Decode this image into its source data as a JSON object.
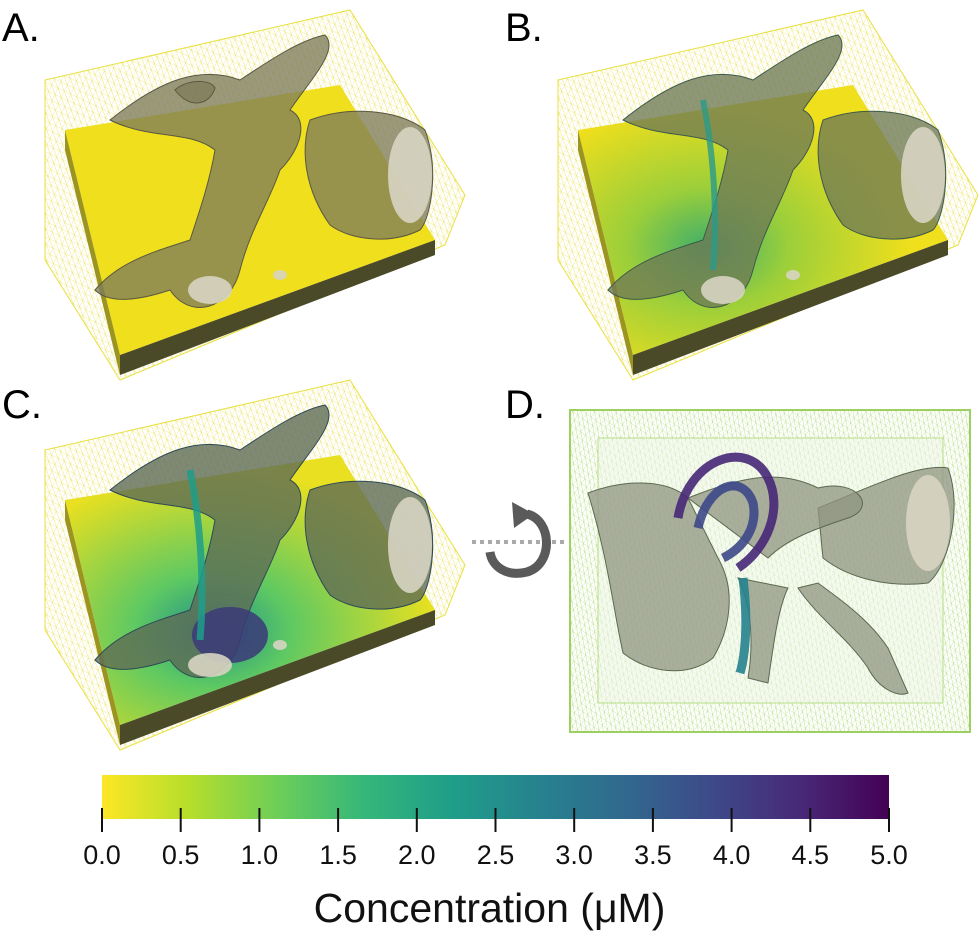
{
  "panels": [
    {
      "label": "A.",
      "max_concentration": 0.0
    },
    {
      "label": "B.",
      "max_concentration": 2.5
    },
    {
      "label": "C.",
      "max_concentration": 4.5
    },
    {
      "label": "D.",
      "max_concentration": 5.0
    }
  ],
  "rotation_icon": "rotate-ccw-icon",
  "colorbar": {
    "title": "Concentration (μM)",
    "min": 0.0,
    "max": 5.0,
    "colormap": "viridis-reversed",
    "stops": [
      "#fde725",
      "#b5de2b",
      "#6ece58",
      "#35b779",
      "#1f9e89",
      "#26828e",
      "#31688e",
      "#3e4989",
      "#482878",
      "#440154"
    ],
    "ticks": [
      "0.0",
      "0.5",
      "1.0",
      "1.5",
      "2.0",
      "2.5",
      "3.0",
      "3.5",
      "4.0",
      "4.5",
      "5.0"
    ]
  },
  "colors": {
    "block_top": "#f2e11e",
    "block_side": "#4a4a2a",
    "mesh": "#e8e05a",
    "bone": "#8a8a70"
  }
}
